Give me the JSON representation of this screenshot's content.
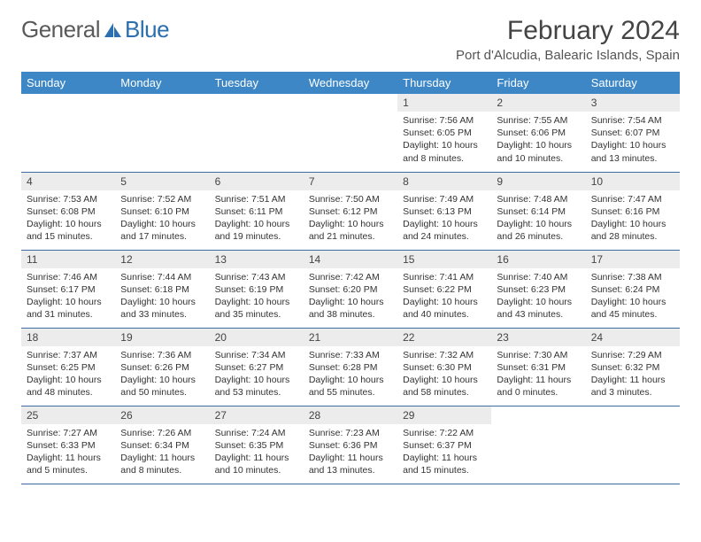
{
  "brand": {
    "part1": "General",
    "part2": "Blue"
  },
  "title": "February 2024",
  "location": "Port d'Alcudia, Balearic Islands, Spain",
  "colors": {
    "header_bg": "#3d87c7",
    "header_text": "#ffffff",
    "daynum_bg": "#ececec",
    "row_border": "#3d6da3",
    "brand_blue": "#2b6fb0",
    "brand_gray": "#5a5a5a"
  },
  "weekdays": [
    "Sunday",
    "Monday",
    "Tuesday",
    "Wednesday",
    "Thursday",
    "Friday",
    "Saturday"
  ],
  "weeks": [
    [
      {
        "day": "",
        "sunrise": "",
        "sunset": "",
        "daylight": ""
      },
      {
        "day": "",
        "sunrise": "",
        "sunset": "",
        "daylight": ""
      },
      {
        "day": "",
        "sunrise": "",
        "sunset": "",
        "daylight": ""
      },
      {
        "day": "",
        "sunrise": "",
        "sunset": "",
        "daylight": ""
      },
      {
        "day": "1",
        "sunrise": "Sunrise: 7:56 AM",
        "sunset": "Sunset: 6:05 PM",
        "daylight": "Daylight: 10 hours and 8 minutes."
      },
      {
        "day": "2",
        "sunrise": "Sunrise: 7:55 AM",
        "sunset": "Sunset: 6:06 PM",
        "daylight": "Daylight: 10 hours and 10 minutes."
      },
      {
        "day": "3",
        "sunrise": "Sunrise: 7:54 AM",
        "sunset": "Sunset: 6:07 PM",
        "daylight": "Daylight: 10 hours and 13 minutes."
      }
    ],
    [
      {
        "day": "4",
        "sunrise": "Sunrise: 7:53 AM",
        "sunset": "Sunset: 6:08 PM",
        "daylight": "Daylight: 10 hours and 15 minutes."
      },
      {
        "day": "5",
        "sunrise": "Sunrise: 7:52 AM",
        "sunset": "Sunset: 6:10 PM",
        "daylight": "Daylight: 10 hours and 17 minutes."
      },
      {
        "day": "6",
        "sunrise": "Sunrise: 7:51 AM",
        "sunset": "Sunset: 6:11 PM",
        "daylight": "Daylight: 10 hours and 19 minutes."
      },
      {
        "day": "7",
        "sunrise": "Sunrise: 7:50 AM",
        "sunset": "Sunset: 6:12 PM",
        "daylight": "Daylight: 10 hours and 21 minutes."
      },
      {
        "day": "8",
        "sunrise": "Sunrise: 7:49 AM",
        "sunset": "Sunset: 6:13 PM",
        "daylight": "Daylight: 10 hours and 24 minutes."
      },
      {
        "day": "9",
        "sunrise": "Sunrise: 7:48 AM",
        "sunset": "Sunset: 6:14 PM",
        "daylight": "Daylight: 10 hours and 26 minutes."
      },
      {
        "day": "10",
        "sunrise": "Sunrise: 7:47 AM",
        "sunset": "Sunset: 6:16 PM",
        "daylight": "Daylight: 10 hours and 28 minutes."
      }
    ],
    [
      {
        "day": "11",
        "sunrise": "Sunrise: 7:46 AM",
        "sunset": "Sunset: 6:17 PM",
        "daylight": "Daylight: 10 hours and 31 minutes."
      },
      {
        "day": "12",
        "sunrise": "Sunrise: 7:44 AM",
        "sunset": "Sunset: 6:18 PM",
        "daylight": "Daylight: 10 hours and 33 minutes."
      },
      {
        "day": "13",
        "sunrise": "Sunrise: 7:43 AM",
        "sunset": "Sunset: 6:19 PM",
        "daylight": "Daylight: 10 hours and 35 minutes."
      },
      {
        "day": "14",
        "sunrise": "Sunrise: 7:42 AM",
        "sunset": "Sunset: 6:20 PM",
        "daylight": "Daylight: 10 hours and 38 minutes."
      },
      {
        "day": "15",
        "sunrise": "Sunrise: 7:41 AM",
        "sunset": "Sunset: 6:22 PM",
        "daylight": "Daylight: 10 hours and 40 minutes."
      },
      {
        "day": "16",
        "sunrise": "Sunrise: 7:40 AM",
        "sunset": "Sunset: 6:23 PM",
        "daylight": "Daylight: 10 hours and 43 minutes."
      },
      {
        "day": "17",
        "sunrise": "Sunrise: 7:38 AM",
        "sunset": "Sunset: 6:24 PM",
        "daylight": "Daylight: 10 hours and 45 minutes."
      }
    ],
    [
      {
        "day": "18",
        "sunrise": "Sunrise: 7:37 AM",
        "sunset": "Sunset: 6:25 PM",
        "daylight": "Daylight: 10 hours and 48 minutes."
      },
      {
        "day": "19",
        "sunrise": "Sunrise: 7:36 AM",
        "sunset": "Sunset: 6:26 PM",
        "daylight": "Daylight: 10 hours and 50 minutes."
      },
      {
        "day": "20",
        "sunrise": "Sunrise: 7:34 AM",
        "sunset": "Sunset: 6:27 PM",
        "daylight": "Daylight: 10 hours and 53 minutes."
      },
      {
        "day": "21",
        "sunrise": "Sunrise: 7:33 AM",
        "sunset": "Sunset: 6:28 PM",
        "daylight": "Daylight: 10 hours and 55 minutes."
      },
      {
        "day": "22",
        "sunrise": "Sunrise: 7:32 AM",
        "sunset": "Sunset: 6:30 PM",
        "daylight": "Daylight: 10 hours and 58 minutes."
      },
      {
        "day": "23",
        "sunrise": "Sunrise: 7:30 AM",
        "sunset": "Sunset: 6:31 PM",
        "daylight": "Daylight: 11 hours and 0 minutes."
      },
      {
        "day": "24",
        "sunrise": "Sunrise: 7:29 AM",
        "sunset": "Sunset: 6:32 PM",
        "daylight": "Daylight: 11 hours and 3 minutes."
      }
    ],
    [
      {
        "day": "25",
        "sunrise": "Sunrise: 7:27 AM",
        "sunset": "Sunset: 6:33 PM",
        "daylight": "Daylight: 11 hours and 5 minutes."
      },
      {
        "day": "26",
        "sunrise": "Sunrise: 7:26 AM",
        "sunset": "Sunset: 6:34 PM",
        "daylight": "Daylight: 11 hours and 8 minutes."
      },
      {
        "day": "27",
        "sunrise": "Sunrise: 7:24 AM",
        "sunset": "Sunset: 6:35 PM",
        "daylight": "Daylight: 11 hours and 10 minutes."
      },
      {
        "day": "28",
        "sunrise": "Sunrise: 7:23 AM",
        "sunset": "Sunset: 6:36 PM",
        "daylight": "Daylight: 11 hours and 13 minutes."
      },
      {
        "day": "29",
        "sunrise": "Sunrise: 7:22 AM",
        "sunset": "Sunset: 6:37 PM",
        "daylight": "Daylight: 11 hours and 15 minutes."
      },
      {
        "day": "",
        "sunrise": "",
        "sunset": "",
        "daylight": ""
      },
      {
        "day": "",
        "sunrise": "",
        "sunset": "",
        "daylight": ""
      }
    ]
  ]
}
